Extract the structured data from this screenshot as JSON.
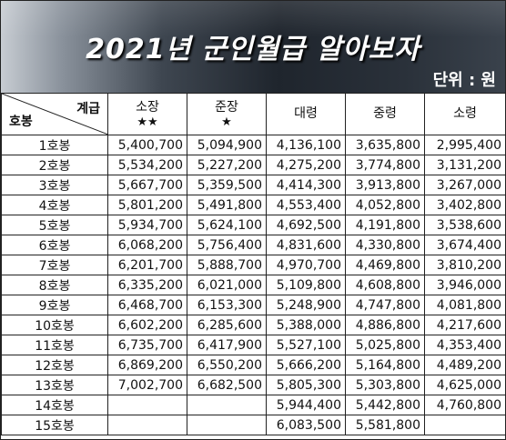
{
  "header": {
    "title": "2021년 군인월급 알아보자",
    "unit": "단위 : 원"
  },
  "table": {
    "corner": {
      "grade": "계급",
      "step": "호봉"
    },
    "columns": [
      {
        "label": "소장",
        "stars": "★★"
      },
      {
        "label": "준장",
        "stars": "★"
      },
      {
        "label": "대령",
        "stars": ""
      },
      {
        "label": "중령",
        "stars": ""
      },
      {
        "label": "소령",
        "stars": ""
      }
    ],
    "rows": [
      {
        "step": "1호봉",
        "values": [
          "5,400,700",
          "5,094,900",
          "4,136,100",
          "3,635,800",
          "2,995,400"
        ]
      },
      {
        "step": "2호봉",
        "values": [
          "5,534,200",
          "5,227,200",
          "4,275,200",
          "3,774,800",
          "3,131,200"
        ]
      },
      {
        "step": "3호봉",
        "values": [
          "5,667,700",
          "5,359,500",
          "4,414,300",
          "3,913,800",
          "3,267,000"
        ]
      },
      {
        "step": "4호봉",
        "values": [
          "5,801,200",
          "5,491,800",
          "4,553,400",
          "4,052,800",
          "3,402,800"
        ]
      },
      {
        "step": "5호봉",
        "values": [
          "5,934,700",
          "5,624,100",
          "4,692,500",
          "4,191,800",
          "3,538,600"
        ]
      },
      {
        "step": "6호봉",
        "values": [
          "6,068,200",
          "5,756,400",
          "4,831,600",
          "4,330,800",
          "3,674,400"
        ]
      },
      {
        "step": "7호봉",
        "values": [
          "6,201,700",
          "5,888,700",
          "4,970,700",
          "4,469,800",
          "3,810,200"
        ]
      },
      {
        "step": "8호봉",
        "values": [
          "6,335,200",
          "6,021,000",
          "5,109,800",
          "4,608,800",
          "3,946,000"
        ]
      },
      {
        "step": "9호봉",
        "values": [
          "6,468,700",
          "6,153,300",
          "5,248,900",
          "4,747,800",
          "4,081,800"
        ]
      },
      {
        "step": "10호봉",
        "values": [
          "6,602,200",
          "6,285,600",
          "5,388,000",
          "4,886,800",
          "4,217,600"
        ]
      },
      {
        "step": "11호봉",
        "values": [
          "6,735,700",
          "6,417,900",
          "5,527,100",
          "5,025,800",
          "4,353,400"
        ]
      },
      {
        "step": "12호봉",
        "values": [
          "6,869,200",
          "6,550,200",
          "5,666,200",
          "5,164,800",
          "4,489,200"
        ]
      },
      {
        "step": "13호봉",
        "values": [
          "7,002,700",
          "6,682,500",
          "5,805,300",
          "5,303,800",
          "4,625,000"
        ]
      },
      {
        "step": "14호봉",
        "values": [
          "",
          "",
          "5,944,400",
          "5,442,800",
          "4,760,800"
        ]
      },
      {
        "step": "15호봉",
        "values": [
          "",
          "",
          "6,083,500",
          "5,581,800",
          ""
        ]
      }
    ]
  }
}
